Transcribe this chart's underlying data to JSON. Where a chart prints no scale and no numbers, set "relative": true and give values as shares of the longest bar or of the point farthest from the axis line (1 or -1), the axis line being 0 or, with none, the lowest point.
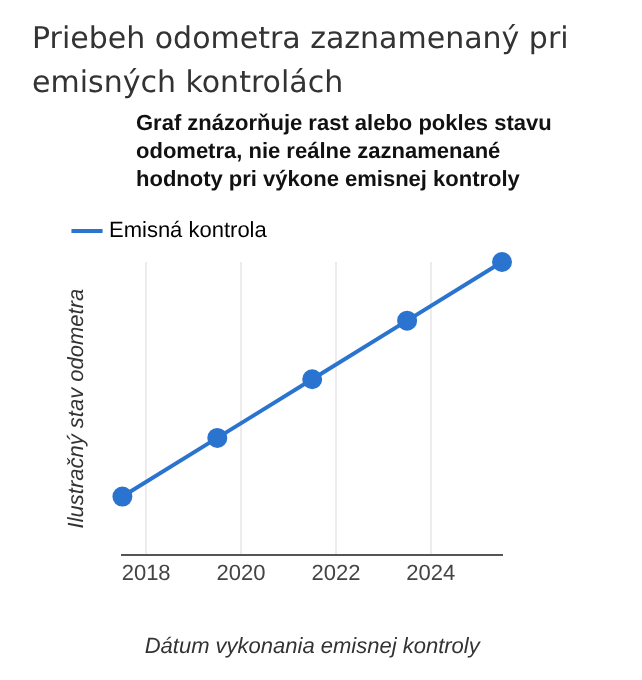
{
  "chart_data": {
    "type": "line",
    "title": "Priebeh odometra zaznamenaný pri emisných kontrolách",
    "subtitle": "Graf znázorňuje rast alebo pokles stavu odometra, nie reálne zaznamenané hodnoty pri výkone emisnej kontroly",
    "xlabel": "Dátum vykonania emisnej kontroly",
    "ylabel": "Ilustračný stav odometra",
    "x": [
      2017.5,
      2019.5,
      2021.5,
      2023.5,
      2025.5
    ],
    "series": [
      {
        "name": "Emisná kontrola",
        "color": "#2a74cf",
        "values": [
          0.2,
          0.4,
          0.6,
          0.8,
          1.0
        ]
      }
    ],
    "relative": true,
    "xlim": [
      2017.5,
      2025.5
    ],
    "xticks": [
      2018,
      2020,
      2022,
      2024
    ],
    "grid": "x",
    "legend": "top left",
    "marker": "circle",
    "line_style": "solid"
  }
}
